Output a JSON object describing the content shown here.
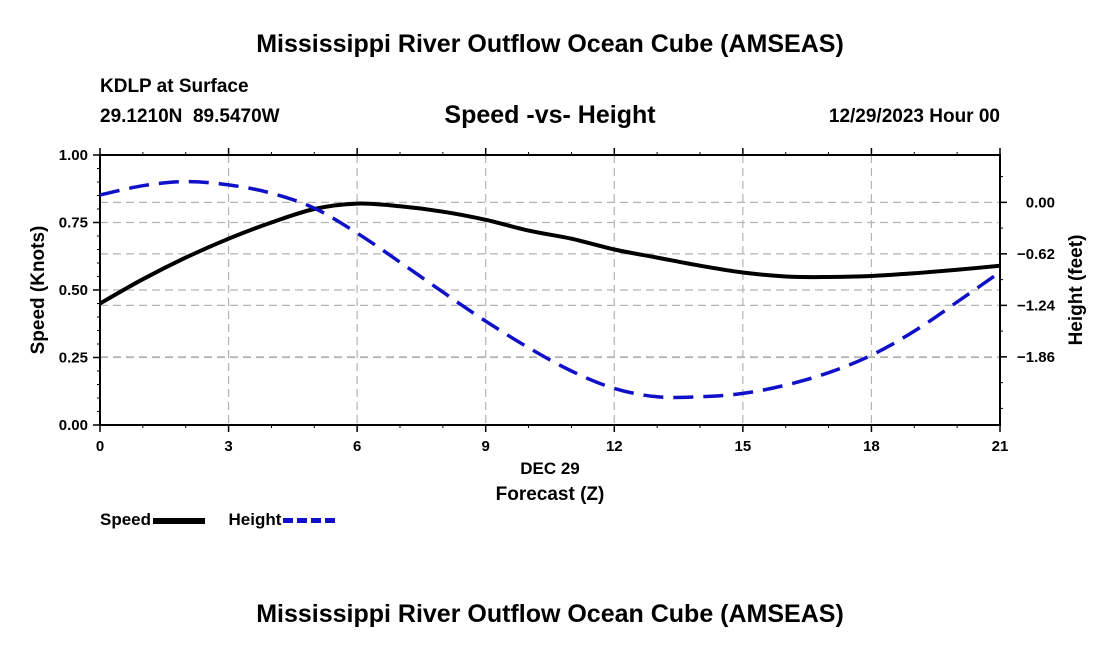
{
  "chart_data": {
    "type": "line",
    "title": "Mississippi River Outflow Ocean Cube (AMSEAS)",
    "footer_title": "Mississippi River Outflow Ocean Cube (AMSEAS)",
    "station": "KDLP at Surface",
    "coordinates": "29.1210N  89.5470W",
    "subtitle": "Speed -vs- Height",
    "date_label": "12/29/2023 Hour 00",
    "xlabel": "Forecast (Z)",
    "xdate": "DEC 29",
    "ylabel": "Speed (Knots)",
    "y2label": "Height (feet)",
    "xlim": [
      0,
      21
    ],
    "ylim": [
      0,
      1
    ],
    "y2lim": [
      -2.68,
      0.57
    ],
    "xticks": [
      0,
      3,
      6,
      9,
      12,
      15,
      18,
      21
    ],
    "xtick_labels": [
      "0",
      "3",
      "6",
      "9",
      "12",
      "15",
      "18",
      "21"
    ],
    "yticks": [
      0.0,
      0.25,
      0.5,
      0.75,
      1.0
    ],
    "ytick_labels": [
      "0.00",
      "0.25",
      "0.50",
      "0.75",
      "1.00"
    ],
    "y2ticks": [
      0.0,
      -0.62,
      -1.24,
      -1.86
    ],
    "y2tick_labels": [
      "0.00",
      "−0.62",
      "−1.24",
      "−1.86"
    ],
    "series": [
      {
        "name": "Speed",
        "axis": "left",
        "color": "#000000",
        "dash": "solid",
        "x": [
          0,
          1,
          2,
          3,
          4,
          5,
          6,
          7,
          8,
          9,
          10,
          11,
          12,
          13,
          14,
          15,
          16,
          17,
          18,
          19,
          20,
          21
        ],
        "values": [
          0.45,
          0.54,
          0.62,
          0.69,
          0.75,
          0.8,
          0.82,
          0.81,
          0.79,
          0.76,
          0.72,
          0.69,
          0.65,
          0.62,
          0.59,
          0.565,
          0.55,
          0.548,
          0.552,
          0.562,
          0.575,
          0.59
        ]
      },
      {
        "name": "Height",
        "axis": "right",
        "color": "#1010c8",
        "dash": "dashed",
        "x": [
          0,
          1,
          2,
          3,
          4,
          5,
          6,
          7,
          8,
          9,
          10,
          11,
          12,
          13,
          14,
          15,
          16,
          17,
          18,
          19,
          20,
          21
        ],
        "values": [
          0.09,
          0.2,
          0.25,
          0.21,
          0.11,
          -0.07,
          -0.37,
          -0.72,
          -1.08,
          -1.43,
          -1.75,
          -2.03,
          -2.24,
          -2.34,
          -2.34,
          -2.3,
          -2.2,
          -2.05,
          -1.84,
          -1.55,
          -1.2,
          -0.84
        ]
      }
    ],
    "legend": [
      {
        "label": "Speed",
        "color": "#000000",
        "dash": "solid"
      },
      {
        "label": "Height",
        "color": "#1010c8",
        "dash": "dashed"
      }
    ]
  }
}
